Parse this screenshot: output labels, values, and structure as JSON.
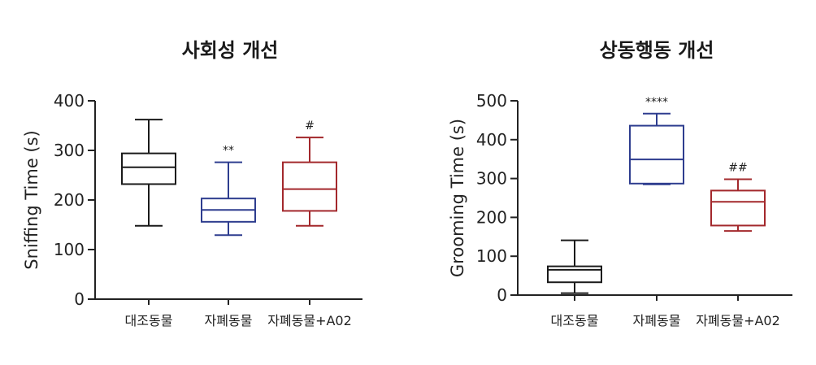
{
  "chart_data": [
    {
      "type": "box",
      "title": "사회성 개선",
      "ylabel": "Sniffing Time (s)",
      "ylim": [
        0,
        400
      ],
      "yticks": [
        0,
        100,
        200,
        300,
        400
      ],
      "categories": [
        "대조동물",
        "자폐동물",
        "자폐동물+A02"
      ],
      "boxes": [
        {
          "category": "대조동물",
          "min": 148,
          "q1": 232,
          "median": 266,
          "q3": 294,
          "max": 362,
          "color": "#1a1a1a",
          "annotation": ""
        },
        {
          "category": "자폐동물",
          "min": 129,
          "q1": 156,
          "median": 180,
          "q3": 203,
          "max": 276,
          "color": "#2e3d8f",
          "annotation": "**"
        },
        {
          "category": "자폐동물+A02",
          "min": 148,
          "q1": 178,
          "median": 222,
          "q3": 276,
          "max": 326,
          "color": "#a3282c",
          "annotation": "#"
        }
      ]
    },
    {
      "type": "box",
      "title": "상동행동 개선",
      "ylabel": "Grooming Time (s)",
      "ylim": [
        0,
        500
      ],
      "yticks": [
        0,
        100,
        200,
        300,
        400,
        500
      ],
      "categories": [
        "대조동물",
        "자폐동물",
        "자폐동물+A02"
      ],
      "boxes": [
        {
          "category": "대조동물",
          "min": 5,
          "q1": 33,
          "median": 65,
          "q3": 74,
          "max": 141,
          "color": "#1a1a1a",
          "annotation": ""
        },
        {
          "category": "자폐동물",
          "min": 285,
          "q1": 287,
          "median": 349,
          "q3": 436,
          "max": 467,
          "color": "#2e3d8f",
          "annotation": "****"
        },
        {
          "category": "자폐동물+A02",
          "min": 165,
          "q1": 179,
          "median": 240,
          "q3": 269,
          "max": 298,
          "color": "#a3282c",
          "annotation": "##"
        }
      ]
    }
  ]
}
